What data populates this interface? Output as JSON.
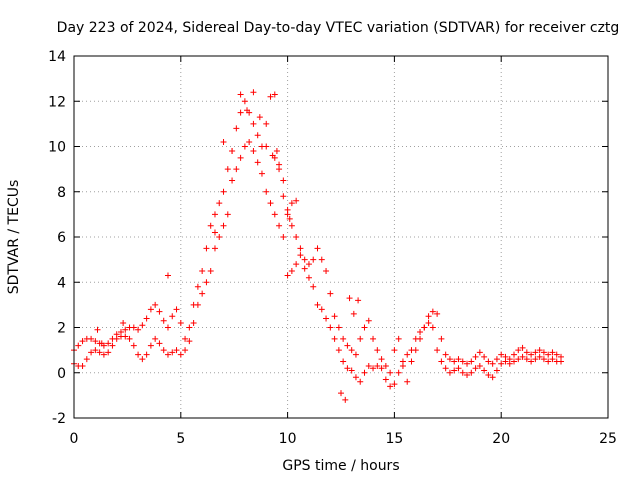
{
  "chart_data": {
    "type": "scatter",
    "title": "Day 223 of 2024, Sidereal Day-to-day VTEC variation (SDTVAR) for receiver cztg",
    "xlabel": "GPS time / hours",
    "ylabel": "SDTVAR / TECUs",
    "xlim": [
      0,
      25
    ],
    "ylim": [
      -2,
      14
    ],
    "xticks": [
      0,
      5,
      10,
      15,
      20,
      25
    ],
    "yticks": [
      -2,
      0,
      2,
      4,
      6,
      8,
      10,
      12,
      14
    ],
    "xtick_labels": [
      "0",
      "5",
      "10",
      "15",
      "20",
      "25"
    ],
    "ytick_labels": [
      "-2",
      "0",
      "2",
      "4",
      "6",
      "8",
      "10",
      "12",
      "14"
    ],
    "grid": true,
    "marker": "+",
    "marker_color": "#ff0000",
    "series": [
      {
        "name": "SDTVAR",
        "x": [
          0.0,
          0.2,
          0.4,
          0.6,
          0.8,
          1.0,
          1.2,
          1.4,
          1.6,
          1.8,
          2.0,
          2.2,
          2.4,
          2.6,
          2.8,
          3.0,
          3.2,
          3.4,
          3.6,
          3.8,
          4.0,
          4.2,
          4.4,
          4.6,
          4.8,
          5.0,
          5.2,
          5.4,
          5.6,
          5.8,
          6.0,
          6.2,
          6.4,
          6.6,
          6.8,
          7.0,
          7.2,
          7.4,
          7.6,
          7.8,
          8.0,
          8.2,
          8.4,
          8.6,
          8.8,
          9.0,
          9.2,
          9.4,
          9.6,
          9.8,
          10.0,
          10.2,
          10.4,
          10.6,
          10.8,
          11.0,
          11.2,
          11.4,
          11.6,
          11.8,
          12.0,
          12.2,
          12.4,
          12.6,
          12.8,
          13.0,
          13.2,
          13.4,
          13.6,
          13.8,
          14.0,
          14.2,
          14.4,
          14.6,
          14.8,
          15.0,
          15.2,
          15.4,
          15.6,
          15.8,
          16.0,
          16.2,
          16.4,
          16.6,
          16.8,
          17.0,
          17.2,
          17.4,
          17.6,
          17.8,
          18.0,
          18.2,
          18.4,
          18.6,
          18.8,
          19.0,
          19.2,
          19.4,
          19.6,
          19.8,
          20.0,
          20.2,
          20.4,
          20.6,
          20.8,
          21.0,
          21.2,
          21.4,
          21.6,
          21.8,
          22.0,
          22.2,
          22.4,
          22.6,
          22.8,
          0.0,
          0.2,
          0.4,
          0.6,
          0.8,
          1.0,
          1.2,
          1.4,
          1.6,
          1.8,
          2.0,
          2.2,
          2.4,
          2.6,
          2.8,
          3.0,
          3.2,
          3.4,
          3.6,
          3.8,
          4.0,
          4.2,
          4.4,
          4.6,
          4.8,
          5.0,
          5.2,
          5.4,
          5.6,
          5.8,
          6.0,
          6.2,
          6.4,
          6.6,
          6.8,
          7.0,
          7.2,
          7.4,
          7.6,
          7.8,
          8.0,
          8.2,
          8.4,
          8.6,
          8.8,
          9.0,
          9.2,
          9.4,
          9.6,
          9.8,
          10.0,
          10.2,
          10.4,
          10.6,
          10.8,
          11.0,
          11.2,
          11.4,
          11.6,
          11.8,
          12.0,
          12.2,
          12.4,
          12.6,
          12.8,
          13.0,
          13.2,
          13.4,
          13.6,
          13.8,
          14.0,
          14.2,
          14.4,
          14.6,
          14.8,
          15.0,
          15.2,
          15.4,
          15.6,
          15.8,
          16.0,
          16.2,
          16.4,
          16.6,
          16.8,
          17.0,
          17.2,
          17.4,
          17.6,
          17.8,
          18.0,
          18.2,
          18.4,
          18.6,
          18.8,
          19.0,
          19.2,
          19.4,
          19.6,
          19.8,
          20.0,
          20.2,
          20.4,
          20.6,
          20.8,
          21.0,
          21.2,
          21.4,
          21.6,
          21.8,
          22.0,
          22.2,
          22.4,
          22.6,
          22.8,
          6.6,
          7.0,
          7.4,
          7.8,
          8.1,
          8.4,
          8.7,
          9.0,
          9.3,
          9.4,
          9.5,
          9.6,
          9.8,
          10.0,
          10.1,
          10.2,
          10.4,
          12.5,
          12.7,
          4.4,
          2.3,
          1.3,
          1.1,
          12.9,
          13.1,
          13.3
        ],
        "y": [
          1.0,
          1.2,
          1.4,
          1.5,
          1.5,
          1.4,
          1.3,
          1.2,
          1.3,
          1.5,
          1.7,
          1.8,
          1.9,
          2.0,
          2.0,
          1.9,
          2.1,
          2.4,
          2.8,
          3.0,
          2.7,
          2.3,
          2.0,
          2.5,
          2.8,
          2.2,
          1.5,
          2.0,
          3.0,
          3.8,
          4.5,
          5.5,
          6.5,
          7.0,
          7.5,
          8.0,
          9.0,
          9.8,
          10.8,
          11.5,
          12.0,
          11.5,
          11.0,
          10.5,
          10.0,
          11.0,
          12.2,
          9.5,
          9.0,
          8.5,
          7.0,
          6.5,
          6.0,
          5.5,
          5.0,
          4.8,
          5.0,
          5.5,
          5.0,
          4.5,
          3.5,
          2.5,
          2.0,
          1.5,
          1.2,
          1.0,
          0.8,
          1.5,
          2.0,
          2.3,
          1.5,
          1.0,
          0.6,
          0.3,
          0.0,
          1.0,
          1.5,
          0.5,
          -0.4,
          0.5,
          1.0,
          1.5,
          2.0,
          2.5,
          2.7,
          2.6,
          1.5,
          0.8,
          0.6,
          0.5,
          0.6,
          0.5,
          0.4,
          0.5,
          0.7,
          0.9,
          0.7,
          0.5,
          0.4,
          0.6,
          0.8,
          0.7,
          0.6,
          0.8,
          1.0,
          1.1,
          0.9,
          0.8,
          0.9,
          1.0,
          0.9,
          0.8,
          0.9,
          0.8,
          0.7,
          0.4,
          0.3,
          0.3,
          0.6,
          0.9,
          1.0,
          0.9,
          0.8,
          0.9,
          1.2,
          1.5,
          1.6,
          1.6,
          1.5,
          1.2,
          0.8,
          0.6,
          0.8,
          1.2,
          1.5,
          1.3,
          1.0,
          0.8,
          0.9,
          1.0,
          0.8,
          1.0,
          1.4,
          2.2,
          3.0,
          3.5,
          4.0,
          4.5,
          5.5,
          6.0,
          6.5,
          7.0,
          8.5,
          9.0,
          9.5,
          10.0,
          10.2,
          9.8,
          9.3,
          8.8,
          8.0,
          7.5,
          7.0,
          6.5,
          6.0,
          4.3,
          4.5,
          4.8,
          5.2,
          4.6,
          4.2,
          3.8,
          3.0,
          2.8,
          2.4,
          2.0,
          1.5,
          1.0,
          0.5,
          0.2,
          0.1,
          -0.2,
          -0.4,
          0.0,
          0.3,
          0.2,
          0.3,
          0.2,
          -0.3,
          -0.6,
          -0.5,
          0.0,
          0.3,
          0.8,
          1.0,
          1.5,
          1.8,
          2.0,
          2.2,
          2.0,
          1.0,
          0.5,
          0.2,
          0.0,
          0.1,
          0.2,
          0.0,
          -0.1,
          0.0,
          0.2,
          0.3,
          0.1,
          -0.1,
          -0.2,
          0.1,
          0.4,
          0.5,
          0.4,
          0.5,
          0.6,
          0.7,
          0.6,
          0.5,
          0.6,
          0.7,
          0.6,
          0.5,
          0.6,
          0.5,
          0.5,
          6.2,
          10.2,
          9.8,
          12.3,
          11.6,
          12.4,
          11.3,
          10.0,
          9.6,
          12.3,
          9.8,
          9.2,
          7.8,
          7.2,
          6.8,
          7.5,
          7.6,
          -0.9,
          -1.2,
          4.3,
          2.2,
          1.3,
          1.9,
          3.3,
          2.6,
          3.2
        ]
      }
    ]
  }
}
